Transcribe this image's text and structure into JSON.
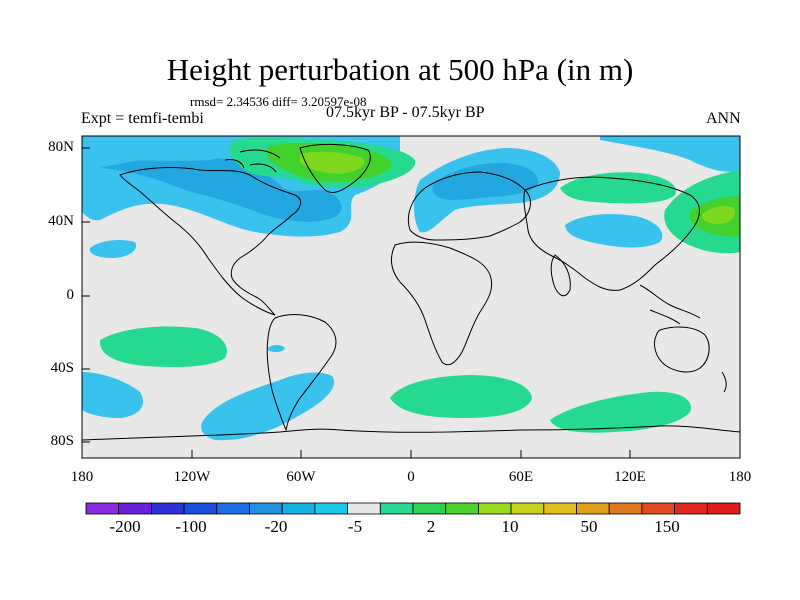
{
  "title": "Height perturbation at 500 hPa (in m)",
  "stats": "rmsd= 2.34536 diff= 3.20597e-08",
  "experiment": "Expt = temfi-tembi",
  "period": "07.5kyr BP - 07.5kyr BP",
  "season": "ANN",
  "axes": {
    "y_ticks": [
      "80N",
      "40N",
      "0",
      "40S",
      "80S"
    ],
    "x_ticks": [
      "180",
      "120W",
      "60W",
      "0",
      "60E",
      "120E",
      "180"
    ]
  },
  "colorbar": {
    "labels": [
      "-200",
      "-100",
      "-20",
      "-5",
      "2",
      "10",
      "50",
      "150"
    ],
    "colors": [
      "#8a2be2",
      "#6a1fd8",
      "#3030d8",
      "#1a50e0",
      "#1e6fe6",
      "#1f92e0",
      "#12b2e6",
      "#18c8ea",
      "#e8e8e8",
      "#28d890",
      "#2ed250",
      "#4ad22a",
      "#98dc1e",
      "#c8d21e",
      "#e0c01e",
      "#e0a01e",
      "#e07a1e",
      "#e04a1e",
      "#e02a1e",
      "#e01a1a"
    ]
  },
  "palette": {
    "light_blue": "#39c2ee",
    "medium_blue": "#23a7e0",
    "sea_green": "#25d98e",
    "green": "#42d02c",
    "lime": "#7ed81e",
    "neutral": "#e8e8e8"
  }
}
